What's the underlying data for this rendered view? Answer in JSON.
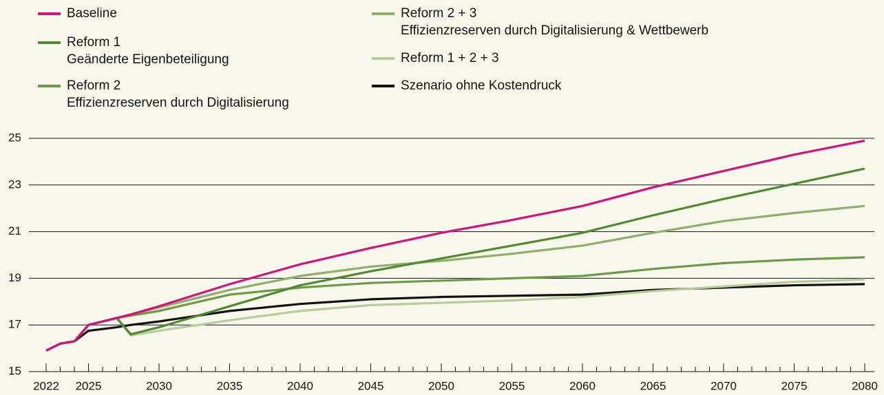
{
  "chart_data": {
    "type": "line",
    "x": [
      2022,
      2023,
      2024,
      2025,
      2027,
      2028,
      2030,
      2035,
      2040,
      2045,
      2050,
      2055,
      2060,
      2065,
      2070,
      2075,
      2080
    ],
    "series": [
      {
        "name": "Baseline",
        "color": "#d6127a",
        "values": [
          15.9,
          16.2,
          16.3,
          17.0,
          17.3,
          17.45,
          17.8,
          18.75,
          19.6,
          20.3,
          20.95,
          21.5,
          22.1,
          22.9,
          23.6,
          24.3,
          24.9
        ]
      },
      {
        "name": "Reform 1",
        "description": "Geänderte Eigenbeteiligung",
        "color": "#4e8a2e",
        "values": [
          15.9,
          16.2,
          16.3,
          17.0,
          17.3,
          16.6,
          16.9,
          17.8,
          18.7,
          19.3,
          19.85,
          20.4,
          20.95,
          21.7,
          22.4,
          23.05,
          23.7
        ]
      },
      {
        "name": "Reform 2",
        "description": "Effizienzreserven durch Digitalisierung",
        "color": "#6c9a48",
        "values": [
          15.9,
          16.2,
          16.3,
          17.0,
          17.3,
          17.4,
          17.6,
          18.3,
          18.6,
          18.8,
          18.9,
          19.0,
          19.1,
          19.4,
          19.65,
          19.8,
          19.9
        ]
      },
      {
        "name": "Reform 2 + 3",
        "description": "Effizienzreserven durch Digitalisierung & Wettbewerb",
        "color": "#8daf6b",
        "values": [
          15.9,
          16.2,
          16.3,
          17.0,
          17.3,
          17.45,
          17.75,
          18.5,
          19.1,
          19.5,
          19.75,
          20.05,
          20.4,
          20.95,
          21.45,
          21.8,
          22.1
        ]
      },
      {
        "name": "Reform 1 + 2 + 3",
        "color": "#b6cc9a",
        "values": [
          15.9,
          16.2,
          16.3,
          17.0,
          17.3,
          16.55,
          16.75,
          17.2,
          17.6,
          17.85,
          17.95,
          18.05,
          18.2,
          18.45,
          18.65,
          18.85,
          18.95
        ]
      },
      {
        "name": "Szenario ohne Kostendruck",
        "color": "#111111",
        "values": [
          15.9,
          16.2,
          16.3,
          16.75,
          16.9,
          17.0,
          17.15,
          17.6,
          17.9,
          18.1,
          18.2,
          18.25,
          18.3,
          18.5,
          18.6,
          18.7,
          18.75
        ]
      }
    ],
    "xlim": [
      2022,
      2080
    ],
    "xticks": [
      2022,
      2025,
      2030,
      2035,
      2040,
      2045,
      2050,
      2055,
      2060,
      2065,
      2070,
      2075,
      2080
    ],
    "ylim": [
      15,
      25
    ],
    "yticks": [
      15,
      17,
      19,
      21,
      23,
      25
    ],
    "grid": true
  }
}
